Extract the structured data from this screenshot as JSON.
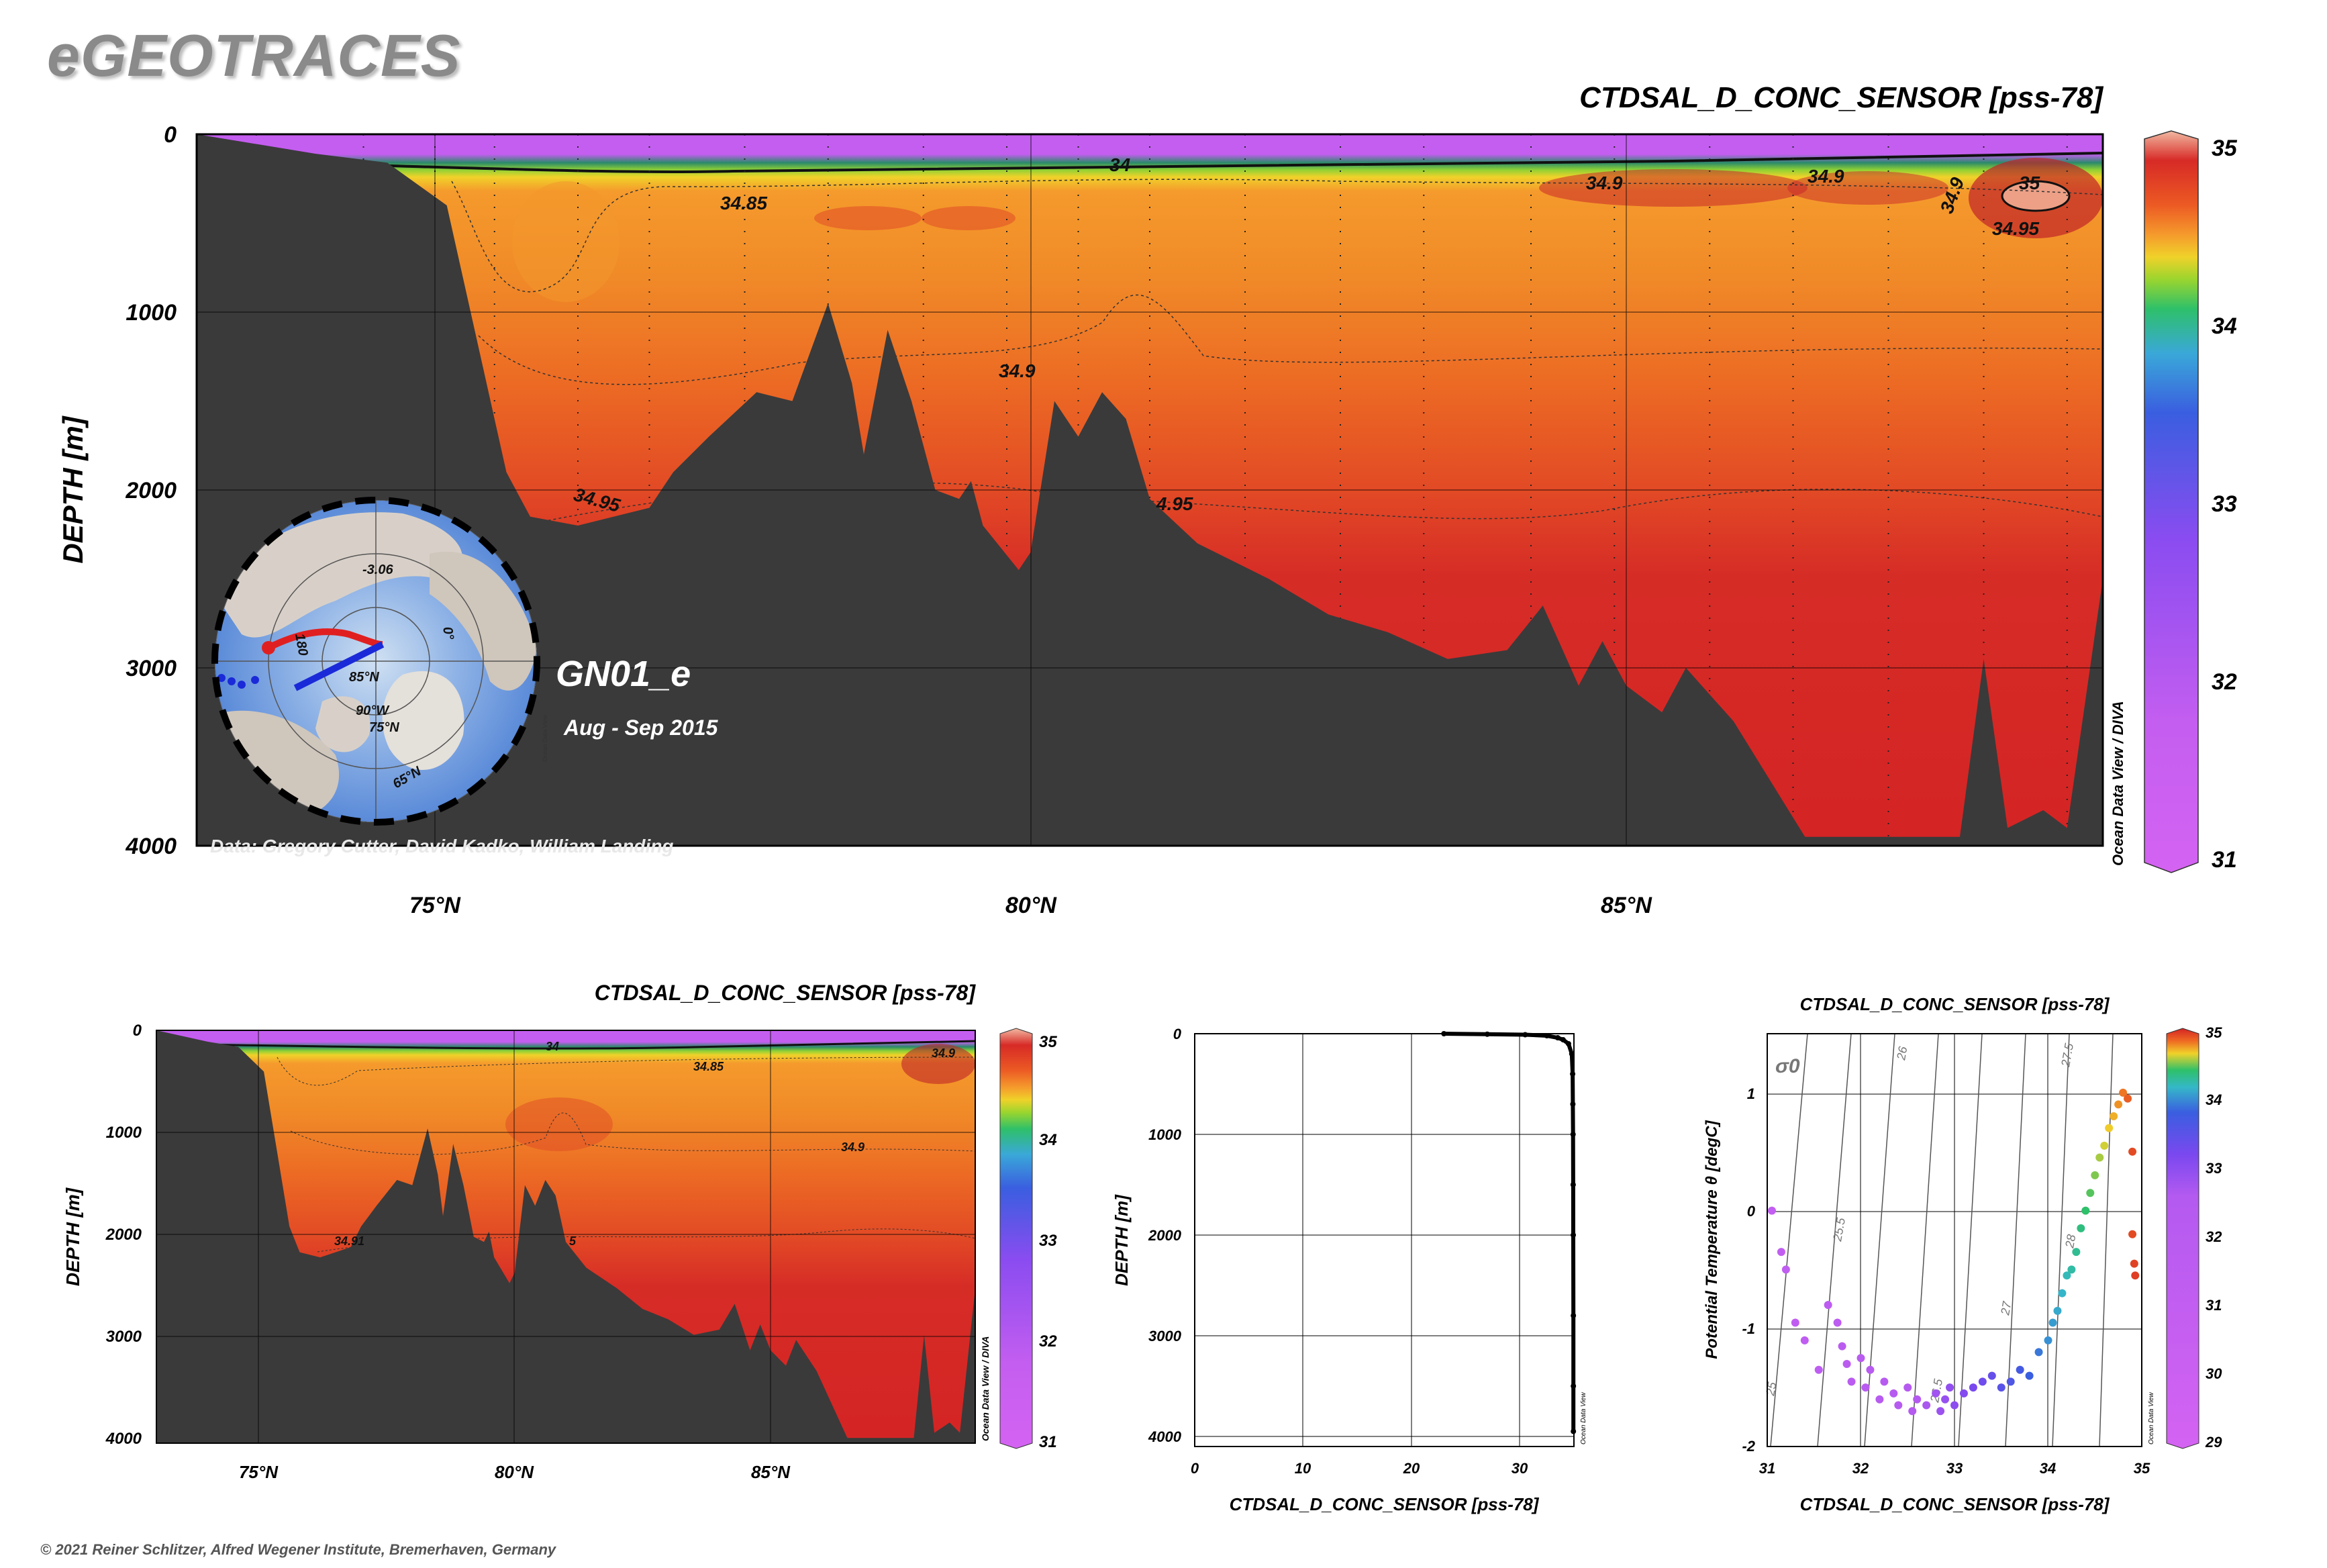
{
  "brand": "eGEOTRACES",
  "copyright": "© 2021 Reiner Schlitzer, Alfred Wegener Institute, Bremerhaven, Germany",
  "colors": {
    "land": "#3a3a3a",
    "gradient": [
      "#d25ef0",
      "#9b55f0",
      "#5a3fe0",
      "#3a8ad6",
      "#35c0c0",
      "#2ec06a",
      "#8fd135",
      "#e8d82b",
      "#f6a22c",
      "#ef6a23",
      "#dc2e26",
      "#d42424",
      "#f0b8a0"
    ]
  },
  "main_section": {
    "title": "CTDSAL_D_CONC_SENSOR [pss-78]",
    "ylabel": "DEPTH [m]",
    "watermark": "Ocean Data View / DIVA",
    "credit": "Data: Gregory Cutter, David Kadko, William Landing",
    "cruise": "GN01_e",
    "dates": "Aug - Sep 2015",
    "contour_labels": [
      "34",
      "34.85",
      "34.9",
      "34.9",
      "34.9",
      "34.9",
      "35",
      "34.95",
      "34.95",
      "4.95"
    ],
    "map_labels": [
      "-3.06",
      "180",
      "85°N",
      "90°W",
      "75°N",
      "0°",
      "65°N"
    ],
    "map_watermark": "Ocean Data View"
  },
  "chart_data": [
    {
      "type": "heatmap",
      "title": "CTDSAL_D_CONC_SENSOR [pss-78]",
      "xlabel": "",
      "ylabel": "DEPTH [m]",
      "x_ticks": [
        "75°N",
        "80°N",
        "85°N"
      ],
      "y_ticks": [
        "0",
        "1000",
        "2000",
        "3000",
        "4000"
      ],
      "xlim": [
        73,
        89
      ],
      "ylim": [
        4000,
        0
      ],
      "colorbar": {
        "ticks": [
          "31",
          "32",
          "33",
          "34",
          "35"
        ],
        "range": [
          31,
          35
        ]
      },
      "x": [
        73.0,
        74.0,
        74.6,
        75.1,
        75.4,
        75.6,
        75.8,
        76.2,
        76.8,
        77.0,
        77.3,
        77.7,
        78.0,
        78.3,
        78.5,
        78.6,
        78.8,
        79.0,
        79.2,
        79.4,
        79.5,
        79.6,
        79.9,
        80.0,
        80.2,
        80.4,
        80.6,
        80.8,
        81.0,
        81.4,
        82.0,
        82.5,
        83.0,
        83.5,
        84.0,
        84.3,
        84.6,
        84.8,
        85.0,
        85.3,
        85.5,
        85.9,
        86.5,
        87.0,
        87.5,
        87.8,
        88.0,
        88.2,
        88.5,
        88.7,
        89.0
      ],
      "bottom_depth": [
        0,
        110,
        160,
        400,
        1300,
        1900,
        2150,
        2200,
        2100,
        1900,
        1700,
        1450,
        1500,
        950,
        1400,
        1800,
        1100,
        1500,
        2000,
        2050,
        1950,
        2200,
        2450,
        2350,
        1500,
        1700,
        1450,
        1600,
        2050,
        2300,
        2500,
        2700,
        2800,
        2950,
        2900,
        2650,
        3100,
        2850,
        3100,
        3250,
        3000,
        3300,
        3950,
        3950,
        3950,
        3950,
        2950,
        3900,
        3800,
        3900,
        2500
      ],
      "watermark": "Ocean Data View / DIVA",
      "legend_position": "right"
    },
    {
      "type": "heatmap",
      "title": "CTDSAL_D_CONC_SENSOR [pss-78]",
      "xlabel": "",
      "ylabel": "DEPTH [m]",
      "x_ticks": [
        "75°N",
        "80°N",
        "85°N"
      ],
      "y_ticks": [
        "0",
        "1000",
        "2000",
        "3000",
        "4000"
      ],
      "xlim": [
        73,
        89
      ],
      "ylim": [
        4000,
        0
      ],
      "colorbar": {
        "ticks": [
          "31",
          "32",
          "33",
          "34",
          "35"
        ],
        "range": [
          31,
          35
        ]
      },
      "contour_labels": [
        "34",
        "34.85",
        "34.9",
        "34.9",
        "34.91",
        "5"
      ],
      "watermark": "Ocean Data View / DIVA"
    },
    {
      "type": "scatter",
      "title": "",
      "xlabel": "CTDSAL_D_CONC_SENSOR [pss-78]",
      "ylabel": "DEPTH [m]",
      "x_ticks": [
        "0",
        "10",
        "20",
        "30"
      ],
      "y_ticks": [
        "0",
        "1000",
        "2000",
        "3000",
        "4000"
      ],
      "xlim": [
        0,
        35
      ],
      "ylim": [
        4100,
        0
      ],
      "watermark": "Ocean Data View",
      "series": [
        {
          "x": [
            23.0,
            27.0,
            30.5,
            32.5,
            33.5,
            34.0,
            34.5,
            34.8,
            34.88,
            34.9,
            34.92,
            34.93,
            34.94,
            34.95,
            34.95,
            34.95
          ],
          "y": [
            0,
            5,
            10,
            20,
            40,
            60,
            100,
            200,
            400,
            700,
            1000,
            1500,
            2000,
            2800,
            3500,
            3950
          ]
        }
      ]
    },
    {
      "type": "scatter",
      "title": "CTDSAL_D_CONC_SENSOR [pss-78]",
      "xlabel": "CTDSAL_D_CONC_SENSOR [pss-78]",
      "ylabel": "Potential Temperature θ [degC]",
      "x_ticks": [
        "31",
        "32",
        "33",
        "34",
        "35"
      ],
      "y_ticks": [
        "-2",
        "-1",
        "0",
        "1"
      ],
      "xlim": [
        31,
        35
      ],
      "ylim": [
        -2,
        1.5
      ],
      "isopycnal_labels": [
        "σ0",
        "25",
        "25.5",
        "26",
        "26.5",
        "27",
        "27.5",
        "28"
      ],
      "colorbar": {
        "ticks": [
          "29",
          "30",
          "31",
          "32",
          "33",
          "34",
          "35"
        ],
        "range": [
          29,
          35
        ]
      },
      "watermark": "Ocean Data View",
      "series": [
        {
          "x": [
            31.05,
            31.15,
            31.2,
            31.3,
            31.4,
            31.55,
            31.65,
            31.75,
            31.8,
            31.85,
            31.9,
            32.0,
            32.05,
            32.1,
            32.2,
            32.25,
            32.35,
            32.4,
            32.5,
            32.55,
            32.6,
            32.7,
            32.8,
            32.85,
            32.9,
            32.95,
            33.0,
            33.1,
            33.2,
            33.3,
            33.4,
            33.5,
            33.6,
            33.7,
            33.8,
            33.9,
            34.0,
            34.05,
            34.1,
            34.15,
            34.2,
            34.25,
            34.3,
            34.35,
            34.4,
            34.45,
            34.5,
            34.55,
            34.6,
            34.65,
            34.7,
            34.75,
            34.8,
            34.85,
            34.9,
            34.9,
            34.92,
            34.93
          ],
          "y": [
            0.0,
            -0.35,
            -0.5,
            -0.95,
            -1.1,
            -1.35,
            -0.8,
            -0.95,
            -1.15,
            -1.3,
            -1.45,
            -1.25,
            -1.5,
            -1.35,
            -1.6,
            -1.45,
            -1.55,
            -1.65,
            -1.5,
            -1.7,
            -1.6,
            -1.65,
            -1.55,
            -1.7,
            -1.6,
            -1.5,
            -1.65,
            -1.55,
            -1.5,
            -1.45,
            -1.4,
            -1.5,
            -1.45,
            -1.35,
            -1.4,
            -1.2,
            -1.1,
            -0.95,
            -0.85,
            -0.7,
            -0.55,
            -0.5,
            -0.35,
            -0.15,
            0.0,
            0.15,
            0.3,
            0.45,
            0.55,
            0.7,
            0.8,
            0.9,
            1.0,
            0.95,
            0.5,
            -0.2,
            -0.45,
            -0.55
          ]
        }
      ]
    }
  ]
}
